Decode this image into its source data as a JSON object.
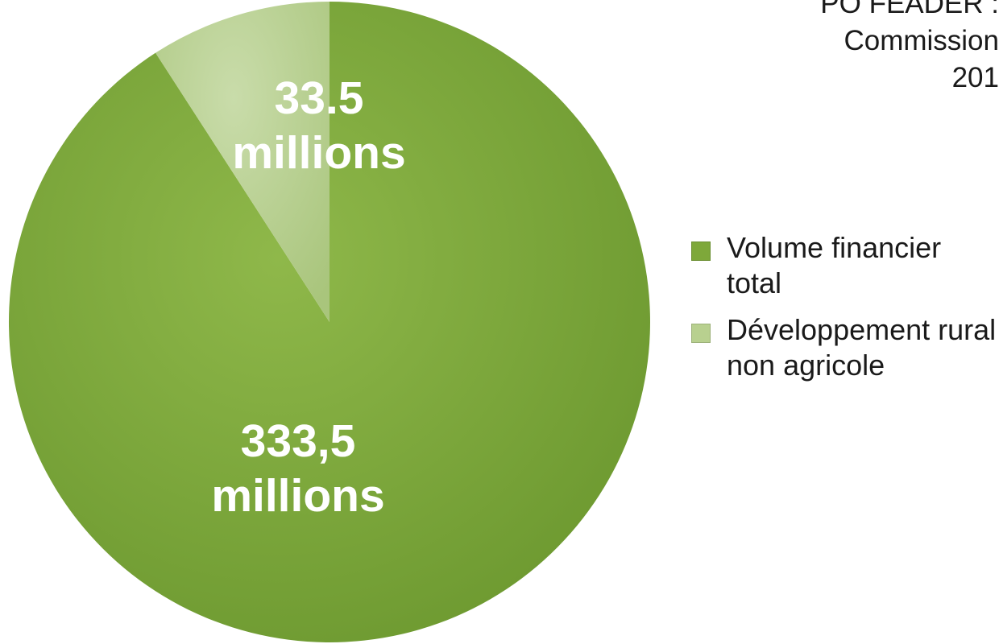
{
  "header": {
    "lines": [
      "PO FEADER :",
      "Commission",
      "201"
    ]
  },
  "chart_data": {
    "type": "pie",
    "title": "",
    "slices": [
      {
        "name": "Volume financier total",
        "value": 333.5,
        "label_lines": [
          "333,5",
          "millions"
        ],
        "color": "#7ea83a"
      },
      {
        "name": "Développement rural non agricole",
        "value": 33.5,
        "label_lines": [
          "33.5",
          "millions"
        ],
        "color": "#b8d08f"
      }
    ],
    "legend": {
      "position": "right",
      "items": [
        {
          "label": "Volume financier total",
          "color": "#7ea83a"
        },
        {
          "label": "Développement rural non agricole",
          "color": "#b8d08f"
        }
      ]
    }
  }
}
